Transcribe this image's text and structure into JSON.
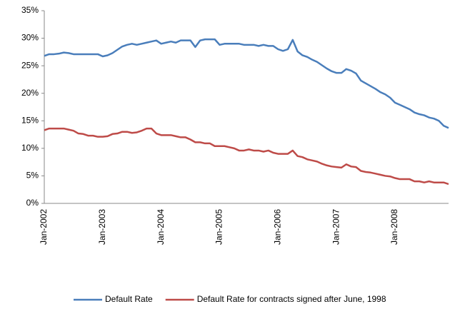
{
  "chart_data": {
    "type": "line",
    "categories": [
      "Jan-2002",
      null,
      null,
      null,
      null,
      null,
      null,
      null,
      null,
      null,
      null,
      null,
      "Jan-2003",
      null,
      null,
      null,
      null,
      null,
      null,
      null,
      null,
      null,
      null,
      null,
      "Jan-2004",
      null,
      null,
      null,
      null,
      null,
      null,
      null,
      null,
      null,
      null,
      null,
      "Jan-2005",
      null,
      null,
      null,
      null,
      null,
      null,
      null,
      null,
      null,
      null,
      null,
      "Jan-2006",
      null,
      null,
      null,
      null,
      null,
      null,
      null,
      null,
      null,
      null,
      null,
      "Jan-2007",
      null,
      null,
      null,
      null,
      null,
      null,
      null,
      null,
      null,
      null,
      null,
      "Jan-2008",
      null,
      null,
      null,
      null,
      null,
      null,
      null,
      null,
      null,
      null,
      null
    ],
    "series": [
      {
        "name": "Default Rate",
        "color": "#4a7ebb",
        "values": [
          26.8,
          27.1,
          27.1,
          27.2,
          27.4,
          27.3,
          27.1,
          27.1,
          27.1,
          27.1,
          27.1,
          27.1,
          26.7,
          26.9,
          27.3,
          27.9,
          28.5,
          28.8,
          29.0,
          28.8,
          29.0,
          29.2,
          29.4,
          29.6,
          29.0,
          29.2,
          29.4,
          29.2,
          29.6,
          29.6,
          29.6,
          28.4,
          29.6,
          29.8,
          29.8,
          29.8,
          28.8,
          29.0,
          29.0,
          29.0,
          29.0,
          28.8,
          28.8,
          28.8,
          28.6,
          28.8,
          28.6,
          28.6,
          28.0,
          27.7,
          28.0,
          29.7,
          27.6,
          26.9,
          26.6,
          26.1,
          25.7,
          25.1,
          24.5,
          24.0,
          23.7,
          23.7,
          24.4,
          24.1,
          23.6,
          22.3,
          21.8,
          21.3,
          20.8,
          20.2,
          19.8,
          19.2,
          18.3,
          17.9,
          17.5,
          17.1,
          16.5,
          16.2,
          16.0,
          15.6,
          15.4,
          15.0,
          14.1,
          13.7
        ]
      },
      {
        "name": "Default Rate for contracts signed after June, 1998",
        "color": "#be4b48",
        "values": [
          13.3,
          13.6,
          13.6,
          13.6,
          13.6,
          13.4,
          13.2,
          12.7,
          12.6,
          12.3,
          12.3,
          12.1,
          12.1,
          12.2,
          12.6,
          12.7,
          13.0,
          13.0,
          12.8,
          12.9,
          13.2,
          13.6,
          13.6,
          12.7,
          12.4,
          12.4,
          12.4,
          12.2,
          12.0,
          12.0,
          11.6,
          11.1,
          11.1,
          10.9,
          10.9,
          10.4,
          10.4,
          10.4,
          10.2,
          10.0,
          9.6,
          9.6,
          9.8,
          9.6,
          9.6,
          9.4,
          9.6,
          9.2,
          9.0,
          9.0,
          9.0,
          9.6,
          8.6,
          8.4,
          8.0,
          7.8,
          7.6,
          7.2,
          6.9,
          6.7,
          6.6,
          6.5,
          7.1,
          6.7,
          6.6,
          5.9,
          5.7,
          5.6,
          5.4,
          5.2,
          5.0,
          4.9,
          4.6,
          4.4,
          4.4,
          4.4,
          4.0,
          4.0,
          3.8,
          4.0,
          3.8,
          3.8,
          3.8,
          3.5
        ]
      }
    ],
    "ylim": [
      0,
      35
    ],
    "yticks": [
      {
        "value": 0,
        "label": "0%"
      },
      {
        "value": 5,
        "label": "5%"
      },
      {
        "value": 10,
        "label": "10%"
      },
      {
        "value": 15,
        "label": "15%"
      },
      {
        "value": 20,
        "label": "20%"
      },
      {
        "value": 25,
        "label": "25%"
      },
      {
        "value": 30,
        "label": "30%"
      },
      {
        "value": 35,
        "label": "35%"
      }
    ],
    "legend": "bottom"
  }
}
